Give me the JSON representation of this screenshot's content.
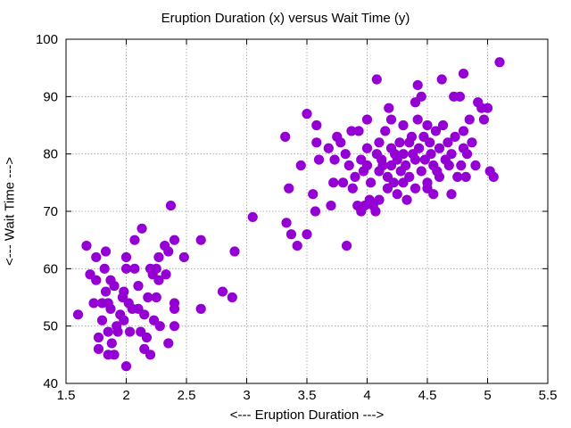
{
  "chart_data": {
    "type": "scatter",
    "title": "Eruption Duration (x) versus Wait Time (y)",
    "xlabel": "<--- Eruption Duration --->",
    "ylabel": "<--- Wait Time --->",
    "xlim": [
      1.5,
      5.5
    ],
    "ylim": [
      40,
      100
    ],
    "xticks": [
      "1.5",
      "2",
      "2.5",
      "3",
      "3.5",
      "4",
      "4.5",
      "5",
      "5.5"
    ],
    "yticks": [
      "40",
      "50",
      "60",
      "70",
      "80",
      "90",
      "100"
    ],
    "grid": true,
    "legend": "none",
    "marker_color": "#9400d3",
    "points": [
      [
        1.6,
        52
      ],
      [
        1.67,
        64
      ],
      [
        1.7,
        59
      ],
      [
        1.73,
        54
      ],
      [
        1.75,
        62
      ],
      [
        1.75,
        58
      ],
      [
        1.77,
        46
      ],
      [
        1.77,
        48
      ],
      [
        1.8,
        54
      ],
      [
        1.8,
        51
      ],
      [
        1.82,
        60
      ],
      [
        1.83,
        56
      ],
      [
        1.83,
        63
      ],
      [
        1.85,
        54
      ],
      [
        1.85,
        49
      ],
      [
        1.85,
        45
      ],
      [
        1.87,
        58
      ],
      [
        1.87,
        53
      ],
      [
        1.88,
        47
      ],
      [
        1.9,
        57
      ],
      [
        1.9,
        45
      ],
      [
        1.92,
        50
      ],
      [
        1.93,
        49
      ],
      [
        1.95,
        52
      ],
      [
        1.97,
        55
      ],
      [
        1.98,
        56
      ],
      [
        1.98,
        51
      ],
      [
        2.0,
        43
      ],
      [
        2.0,
        62
      ],
      [
        2.0,
        60
      ],
      [
        2.02,
        54
      ],
      [
        2.03,
        49
      ],
      [
        2.05,
        53
      ],
      [
        2.07,
        60
      ],
      [
        2.07,
        65
      ],
      [
        2.1,
        57
      ],
      [
        2.1,
        53
      ],
      [
        2.12,
        49
      ],
      [
        2.13,
        67
      ],
      [
        2.15,
        52
      ],
      [
        2.15,
        46
      ],
      [
        2.17,
        48
      ],
      [
        2.18,
        55
      ],
      [
        2.2,
        60
      ],
      [
        2.2,
        45
      ],
      [
        2.22,
        59
      ],
      [
        2.23,
        51
      ],
      [
        2.25,
        60
      ],
      [
        2.25,
        55
      ],
      [
        2.27,
        58
      ],
      [
        2.27,
        62
      ],
      [
        2.28,
        50
      ],
      [
        2.32,
        64
      ],
      [
        2.33,
        59
      ],
      [
        2.35,
        47
      ],
      [
        2.35,
        63
      ],
      [
        2.37,
        71
      ],
      [
        2.4,
        65
      ],
      [
        2.4,
        53
      ],
      [
        2.4,
        54
      ],
      [
        2.4,
        50
      ],
      [
        2.48,
        62
      ],
      [
        2.62,
        53
      ],
      [
        2.62,
        65
      ],
      [
        2.8,
        56
      ],
      [
        2.88,
        55
      ],
      [
        2.9,
        63
      ],
      [
        3.05,
        69
      ],
      [
        3.32,
        83
      ],
      [
        3.33,
        68
      ],
      [
        3.35,
        74
      ],
      [
        3.37,
        66
      ],
      [
        3.42,
        64
      ],
      [
        3.45,
        78
      ],
      [
        3.5,
        66
      ],
      [
        3.5,
        87
      ],
      [
        3.55,
        73
      ],
      [
        3.57,
        70
      ],
      [
        3.58,
        82
      ],
      [
        3.58,
        85
      ],
      [
        3.6,
        79
      ],
      [
        3.68,
        81
      ],
      [
        3.7,
        71
      ],
      [
        3.72,
        75
      ],
      [
        3.73,
        79
      ],
      [
        3.75,
        83
      ],
      [
        3.78,
        82
      ],
      [
        3.8,
        75
      ],
      [
        3.82,
        80
      ],
      [
        3.83,
        64
      ],
      [
        3.85,
        78
      ],
      [
        3.87,
        84
      ],
      [
        3.88,
        74
      ],
      [
        3.9,
        76
      ],
      [
        3.92,
        71
      ],
      [
        3.93,
        84
      ],
      [
        3.95,
        70
      ],
      [
        3.95,
        79
      ],
      [
        3.97,
        77
      ],
      [
        3.98,
        71
      ],
      [
        4.0,
        86
      ],
      [
        4.0,
        81
      ],
      [
        4.0,
        78
      ],
      [
        4.02,
        72
      ],
      [
        4.03,
        75
      ],
      [
        4.05,
        71
      ],
      [
        4.07,
        70
      ],
      [
        4.08,
        80
      ],
      [
        4.08,
        93
      ],
      [
        4.1,
        82
      ],
      [
        4.1,
        77
      ],
      [
        4.1,
        72
      ],
      [
        4.12,
        79
      ],
      [
        4.13,
        78
      ],
      [
        4.15,
        84
      ],
      [
        4.17,
        76
      ],
      [
        4.17,
        74
      ],
      [
        4.18,
        88
      ],
      [
        4.2,
        86
      ],
      [
        4.2,
        81
      ],
      [
        4.2,
        78
      ],
      [
        4.22,
        75
      ],
      [
        4.23,
        80
      ],
      [
        4.25,
        73
      ],
      [
        4.25,
        79
      ],
      [
        4.27,
        82
      ],
      [
        4.28,
        77
      ],
      [
        4.3,
        85
      ],
      [
        4.3,
        80
      ],
      [
        4.3,
        75
      ],
      [
        4.32,
        78
      ],
      [
        4.33,
        72
      ],
      [
        4.35,
        82
      ],
      [
        4.35,
        76
      ],
      [
        4.37,
        83
      ],
      [
        4.38,
        80
      ],
      [
        4.4,
        89
      ],
      [
        4.4,
        79
      ],
      [
        4.4,
        74
      ],
      [
        4.42,
        92
      ],
      [
        4.42,
        86
      ],
      [
        4.43,
        81
      ],
      [
        4.45,
        77
      ],
      [
        4.45,
        90
      ],
      [
        4.47,
        83
      ],
      [
        4.48,
        79
      ],
      [
        4.5,
        85
      ],
      [
        4.5,
        75
      ],
      [
        4.5,
        74
      ],
      [
        4.52,
        82
      ],
      [
        4.53,
        80
      ],
      [
        4.55,
        78
      ],
      [
        4.55,
        73
      ],
      [
        4.57,
        84
      ],
      [
        4.58,
        77
      ],
      [
        4.6,
        81
      ],
      [
        4.6,
        76
      ],
      [
        4.62,
        93
      ],
      [
        4.63,
        85
      ],
      [
        4.65,
        79
      ],
      [
        4.67,
        82
      ],
      [
        4.68,
        78
      ],
      [
        4.7,
        80
      ],
      [
        4.7,
        73
      ],
      [
        4.72,
        90
      ],
      [
        4.73,
        83
      ],
      [
        4.75,
        76
      ],
      [
        4.77,
        90
      ],
      [
        4.78,
        78
      ],
      [
        4.8,
        94
      ],
      [
        4.8,
        84
      ],
      [
        4.8,
        81
      ],
      [
        4.82,
        76
      ],
      [
        4.83,
        80
      ],
      [
        4.85,
        86
      ],
      [
        4.87,
        82
      ],
      [
        4.9,
        78
      ],
      [
        4.92,
        89
      ],
      [
        4.95,
        88
      ],
      [
        4.97,
        86
      ],
      [
        5.0,
        88
      ],
      [
        5.02,
        77
      ],
      [
        5.05,
        76
      ],
      [
        5.1,
        96
      ]
    ]
  }
}
